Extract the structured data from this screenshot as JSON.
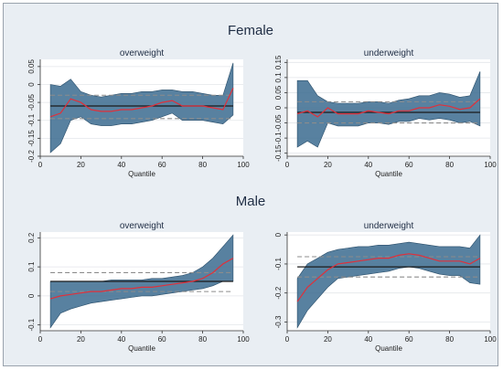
{
  "groups": [
    {
      "title": "Female"
    },
    {
      "title": "Male"
    }
  ],
  "colors": {
    "band": "#3b6b8f",
    "estimate": "#e0303a",
    "ols": "#1a1a1a",
    "ols_ci": "#8c8c8c",
    "plot_bg": "#ffffff",
    "figure_bg": "#e9eef3"
  },
  "chart_data": [
    {
      "type": "line",
      "group": "Female",
      "title": "overweight",
      "xlabel": "Quantile",
      "ylabel": "",
      "xlim": [
        0,
        100
      ],
      "ylim": [
        -0.2,
        0.07
      ],
      "xticks": [
        0,
        20,
        40,
        60,
        80,
        100
      ],
      "yticks": [
        0.05,
        0,
        -0.05,
        -0.1,
        -0.15,
        -0.2
      ],
      "ytick_labels": [
        "0.05",
        "0",
        "-0.05",
        "-0.1",
        "-0.15",
        "-0.2"
      ],
      "grid": true,
      "x": [
        5,
        10,
        15,
        20,
        25,
        30,
        35,
        40,
        45,
        50,
        55,
        60,
        65,
        70,
        75,
        80,
        85,
        90,
        95
      ],
      "estimate": [
        -0.09,
        -0.08,
        -0.04,
        -0.05,
        -0.07,
        -0.075,
        -0.075,
        -0.07,
        -0.07,
        -0.065,
        -0.06,
        -0.05,
        -0.045,
        -0.06,
        -0.06,
        -0.06,
        -0.065,
        -0.07,
        -0.01
      ],
      "ci_upper": [
        0.0,
        -0.005,
        0.015,
        -0.02,
        -0.03,
        -0.035,
        -0.03,
        -0.025,
        -0.025,
        -0.02,
        -0.02,
        -0.015,
        -0.015,
        -0.02,
        -0.02,
        -0.025,
        -0.03,
        -0.03,
        0.06
      ],
      "ci_lower": [
        -0.19,
        -0.165,
        -0.1,
        -0.09,
        -0.11,
        -0.115,
        -0.115,
        -0.11,
        -0.11,
        -0.105,
        -0.1,
        -0.09,
        -0.08,
        -0.1,
        -0.1,
        -0.1,
        -0.105,
        -0.11,
        -0.085
      ],
      "ols": -0.06,
      "ols_ci": [
        -0.03,
        -0.095
      ]
    },
    {
      "type": "line",
      "group": "Female",
      "title": "underweight",
      "xlabel": "Quantile",
      "ylabel": "",
      "xlim": [
        0,
        100
      ],
      "ylim": [
        -0.16,
        0.16
      ],
      "xticks": [
        0,
        20,
        40,
        60,
        80,
        100
      ],
      "yticks": [
        0.15,
        0.1,
        0.05,
        0,
        -0.05,
        -0.1,
        -0.15
      ],
      "ytick_labels": [
        "0.15",
        "0.1",
        "0.05",
        "0",
        "-0.05",
        "-0.1",
        "-0.15"
      ],
      "grid": true,
      "x": [
        5,
        10,
        15,
        20,
        25,
        30,
        35,
        40,
        45,
        50,
        55,
        60,
        65,
        70,
        75,
        80,
        85,
        90,
        95
      ],
      "estimate": [
        -0.02,
        -0.01,
        -0.03,
        0.0,
        -0.02,
        -0.02,
        -0.02,
        -0.01,
        -0.015,
        -0.02,
        -0.01,
        -0.01,
        0.0,
        0.0,
        0.01,
        0.005,
        -0.005,
        0.0,
        0.03
      ],
      "ci_upper": [
        0.09,
        0.09,
        0.04,
        0.02,
        0.015,
        0.015,
        0.015,
        0.02,
        0.02,
        0.015,
        0.025,
        0.03,
        0.04,
        0.04,
        0.05,
        0.045,
        0.035,
        0.04,
        0.12
      ],
      "ci_lower": [
        -0.13,
        -0.11,
        -0.13,
        -0.05,
        -0.06,
        -0.06,
        -0.06,
        -0.05,
        -0.05,
        -0.055,
        -0.045,
        -0.045,
        -0.035,
        -0.04,
        -0.035,
        -0.04,
        -0.05,
        -0.045,
        -0.06
      ],
      "ols": -0.015,
      "ols_ci": [
        0.02,
        -0.05
      ]
    },
    {
      "type": "line",
      "group": "Male",
      "title": "overweight",
      "xlabel": "Quantile",
      "ylabel": "",
      "xlim": [
        0,
        100
      ],
      "ylim": [
        -0.12,
        0.22
      ],
      "xticks": [
        0,
        20,
        40,
        60,
        80,
        100
      ],
      "yticks": [
        0.2,
        0.1,
        0,
        -0.1
      ],
      "ytick_labels": [
        "0.2",
        "0.1",
        "0",
        "-0.1"
      ],
      "grid": true,
      "x": [
        5,
        10,
        15,
        20,
        25,
        30,
        35,
        40,
        45,
        50,
        55,
        60,
        65,
        70,
        75,
        80,
        85,
        90,
        95
      ],
      "estimate": [
        -0.01,
        0.0,
        0.005,
        0.01,
        0.015,
        0.015,
        0.02,
        0.025,
        0.025,
        0.03,
        0.03,
        0.035,
        0.04,
        0.045,
        0.05,
        0.06,
        0.08,
        0.11,
        0.13
      ],
      "ci_upper": [
        0.05,
        0.05,
        0.05,
        0.05,
        0.05,
        0.05,
        0.055,
        0.055,
        0.055,
        0.055,
        0.06,
        0.06,
        0.065,
        0.07,
        0.08,
        0.1,
        0.13,
        0.17,
        0.21
      ],
      "ci_lower": [
        -0.11,
        -0.06,
        -0.045,
        -0.035,
        -0.025,
        -0.02,
        -0.015,
        -0.01,
        -0.005,
        0.0,
        0.0,
        0.005,
        0.01,
        0.015,
        0.02,
        0.025,
        0.035,
        0.05,
        0.05
      ],
      "ols": 0.05,
      "ols_ci": [
        0.08,
        0.015
      ]
    },
    {
      "type": "line",
      "group": "Male",
      "title": "underweight",
      "xlabel": "Quantile",
      "ylabel": "",
      "xlim": [
        0,
        100
      ],
      "ylim": [
        -0.33,
        0.01
      ],
      "xticks": [
        0,
        20,
        40,
        60,
        80,
        100
      ],
      "yticks": [
        0,
        -0.1,
        -0.2,
        -0.3
      ],
      "ytick_labels": [
        "0",
        "-0.1",
        "-0.2",
        "-0.3"
      ],
      "grid": true,
      "x": [
        5,
        10,
        15,
        20,
        25,
        30,
        35,
        40,
        45,
        50,
        55,
        60,
        65,
        70,
        75,
        80,
        85,
        90,
        95
      ],
      "estimate": [
        -0.23,
        -0.18,
        -0.15,
        -0.12,
        -0.1,
        -0.095,
        -0.09,
        -0.085,
        -0.08,
        -0.08,
        -0.07,
        -0.065,
        -0.07,
        -0.08,
        -0.09,
        -0.09,
        -0.09,
        -0.1,
        -0.08
      ],
      "ci_upper": [
        -0.15,
        -0.1,
        -0.08,
        -0.06,
        -0.05,
        -0.045,
        -0.04,
        -0.04,
        -0.035,
        -0.035,
        -0.03,
        -0.025,
        -0.03,
        -0.035,
        -0.04,
        -0.04,
        -0.04,
        -0.045,
        0.0
      ],
      "ci_lower": [
        -0.32,
        -0.26,
        -0.22,
        -0.18,
        -0.15,
        -0.145,
        -0.14,
        -0.135,
        -0.13,
        -0.125,
        -0.115,
        -0.11,
        -0.115,
        -0.125,
        -0.135,
        -0.14,
        -0.14,
        -0.165,
        -0.17
      ],
      "ols": -0.11,
      "ols_ci": [
        -0.075,
        -0.145
      ]
    }
  ]
}
